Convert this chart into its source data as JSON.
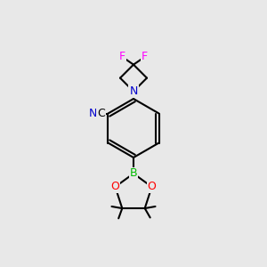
{
  "background_color": "#e8e8e8",
  "bond_color": "#000000",
  "bond_width": 1.5,
  "atom_colors": {
    "C": "#000000",
    "N": "#0000cc",
    "O": "#ff0000",
    "B": "#00bb00",
    "F": "#ff00ff"
  },
  "font_size": 9,
  "figsize": [
    3.0,
    3.0
  ],
  "dpi": 100
}
